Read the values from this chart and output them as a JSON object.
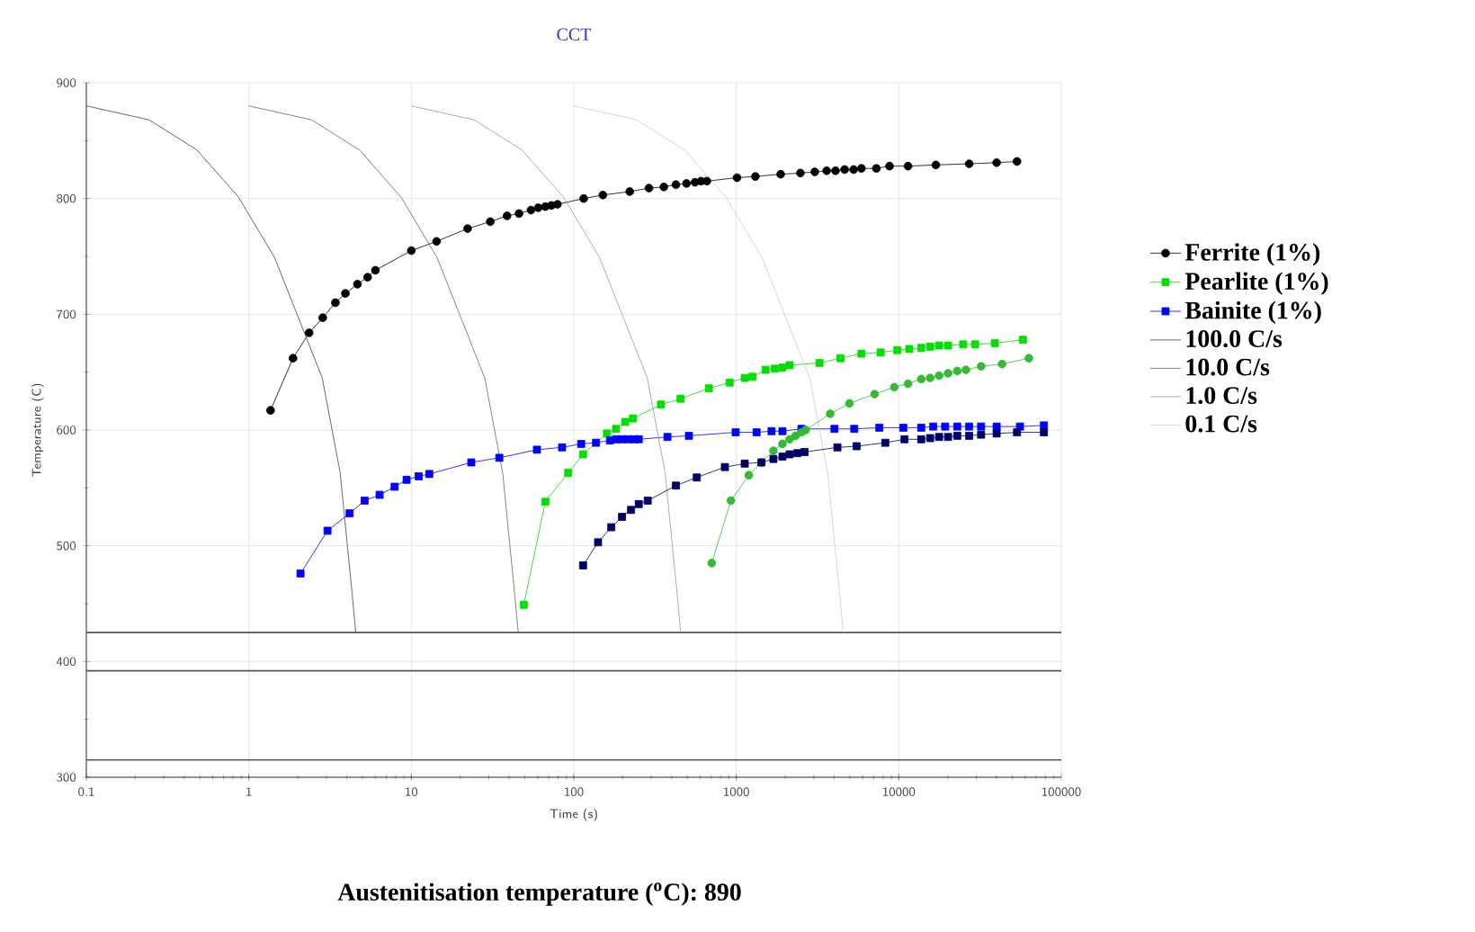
{
  "chart_data": {
    "type": "line",
    "title": "CCT",
    "xlabel": "Time (s)",
    "ylabel": "Temperature (C)",
    "log": "x",
    "grid": true,
    "legend": "right",
    "xlim": [
      0.1,
      100000
    ],
    "ylim": [
      300,
      900
    ],
    "xticks": [
      0.1,
      1,
      10,
      100,
      1000,
      10000,
      100000
    ],
    "yticks": [
      300,
      400,
      500,
      600,
      700,
      800,
      900
    ],
    "series": [
      {
        "name": "Ferrite (1%)",
        "color": "#000000",
        "marker": "circle",
        "line_style": "solid",
        "x": [
          1.36,
          1.87,
          2.35,
          2.85,
          3.41,
          3.93,
          4.66,
          5.38,
          6.01,
          10,
          14.3,
          22.2,
          30.6,
          38.8,
          46,
          54.5,
          60.4,
          66.8,
          72.8,
          79.3,
          115,
          151,
          221,
          290,
          358,
          425,
          494,
          557,
          607,
          659,
          1010,
          1310,
          1875,
          2480,
          3040,
          3600,
          4080,
          4640,
          5270,
          5890,
          7280,
          8770,
          11400,
          16900,
          27100,
          40000,
          53400
        ],
        "values": [
          617,
          662,
          684,
          697,
          710,
          718,
          726,
          732,
          738,
          755,
          763,
          774,
          780,
          785,
          787,
          790,
          792,
          793,
          794,
          795,
          800,
          803,
          806,
          809,
          810,
          812,
          813,
          814,
          815,
          815,
          818,
          819,
          821,
          822,
          823,
          824,
          824,
          825,
          825,
          826,
          826,
          828,
          828,
          829,
          830,
          831,
          832
        ]
      },
      {
        "name": "Pearlite (1%)",
        "color": "#00e000",
        "marker": "square",
        "line_style": "solid",
        "x": [
          49.2,
          66.8,
          92.3,
          114,
          160,
          182,
          207,
          231,
          344,
          454,
          678,
          910,
          1127,
          1256,
          1514,
          1722,
          1923,
          2128,
          3251,
          4375,
          5890,
          7730,
          9790,
          11600,
          13740,
          15600,
          17700,
          20100,
          24900,
          29500,
          39000,
          58100
        ],
        "values": [
          449,
          538,
          563,
          579,
          597,
          601,
          607,
          610,
          622,
          627,
          636,
          641,
          645,
          646,
          652,
          653,
          654,
          656,
          658,
          662,
          666,
          667,
          669,
          670,
          671,
          672,
          673,
          673,
          674,
          674,
          675,
          678
        ]
      },
      {
        "name": "Bainite (1%)",
        "color": "#0000ff",
        "marker": "square",
        "line_style": "solid",
        "x": [
          2.08,
          3.05,
          4.17,
          5.16,
          6.38,
          7.89,
          9.35,
          11.1,
          12.9,
          23.4,
          34.8,
          59.3,
          84.7,
          111,
          137,
          167,
          182,
          198,
          215,
          235,
          251,
          377,
          511,
          991,
          1333,
          1648,
          1923,
          2518,
          4018,
          5320,
          7590,
          10660,
          13740,
          16290,
          19300,
          22900,
          27100,
          32100,
          40000,
          55700,
          78200
        ],
        "values": [
          476,
          513,
          528,
          539,
          544,
          551,
          557,
          560,
          562,
          572,
          576,
          583,
          585,
          588,
          589,
          591,
          592,
          592,
          592,
          592,
          592,
          594,
          595,
          598,
          598,
          599,
          599,
          601,
          601,
          601,
          602,
          602,
          602,
          603,
          603,
          603,
          603,
          603,
          603,
          603,
          604
        ]
      },
      {
        "name": "100.0 C/s",
        "color": "#444444",
        "marker": "none",
        "line_style": "solid",
        "x": [
          0.1,
          0.243,
          0.479,
          0.866,
          1.44,
          2.02,
          2.83,
          3.65,
          4.32,
          4.55
        ],
        "values": [
          880,
          868,
          842,
          801,
          749,
          697,
          645,
          563,
          459,
          425
        ]
      },
      {
        "name": "10.0 C/s",
        "color": "#666666",
        "marker": "none",
        "line_style": "solid",
        "x": [
          1,
          2.43,
          4.79,
          8.66,
          14.4,
          20.2,
          28.3,
          36.5,
          43.2,
          45.5
        ],
        "values": [
          880,
          868,
          842,
          801,
          749,
          697,
          645,
          563,
          459,
          425
        ]
      },
      {
        "name": "1.0 C/s",
        "color": "#999999",
        "marker": "none",
        "line_style": "solid",
        "x": [
          10,
          24.3,
          47.9,
          86.6,
          144,
          202,
          283,
          365,
          432,
          455
        ],
        "values": [
          880,
          868,
          842,
          801,
          749,
          697,
          645,
          563,
          459,
          425
        ]
      },
      {
        "name": "0.1 C/s",
        "color": "#cccccc",
        "marker": "none",
        "line_style": "solid",
        "x": [
          100,
          243,
          479,
          866,
          1440,
          2020,
          2830,
          3650,
          4320,
          4550
        ],
        "values": [
          880,
          868,
          842,
          801,
          749,
          697,
          645,
          563,
          459,
          425
        ]
      },
      {
        "color": "#33bb33",
        "marker": "circle",
        "line_style": "solid",
        "x": [
          706,
          927,
          1194,
          1428,
          1692,
          1923,
          2128,
          2316,
          2518,
          2673,
          3784,
          4966,
          7096,
          9376,
          11400,
          13740,
          15600,
          17700,
          20100,
          22900,
          25900,
          32100,
          43200,
          63200
        ],
        "values": [
          485,
          539,
          561,
          572,
          582,
          588,
          592,
          595,
          598,
          600,
          614,
          623,
          631,
          637,
          640,
          644,
          645,
          647,
          649,
          651,
          652,
          655,
          657,
          662
        ]
      },
      {
        "color": "#000066",
        "marker": "square",
        "line_style": "solid",
        "x": [
          114,
          141,
          170,
          198,
          225,
          251,
          285,
          425,
          571,
          851,
          1127,
          1428,
          1692,
          1923,
          2128,
          2377,
          2630,
          4190,
          5500,
          8260,
          10840,
          13740,
          15600,
          17700,
          20100,
          22900,
          27100,
          32100,
          40000,
          53400,
          78200
        ],
        "values": [
          483,
          503,
          516,
          525,
          531,
          536,
          539,
          552,
          559,
          568,
          571,
          572,
          575,
          577,
          579,
          580,
          581,
          585,
          586,
          589,
          592,
          592,
          593,
          594,
          594,
          595,
          595,
          596,
          597,
          598,
          598
        ]
      }
    ],
    "ref_lines": [
      {
        "axis": "y",
        "value": 425,
        "color": "#555555"
      },
      {
        "axis": "y",
        "value": 392,
        "color": "#555555"
      },
      {
        "axis": "y",
        "value": 315,
        "color": "#555555"
      }
    ],
    "annotations": [
      "**Austenitisation temperature ($^{o}$C): 890**"
    ]
  }
}
